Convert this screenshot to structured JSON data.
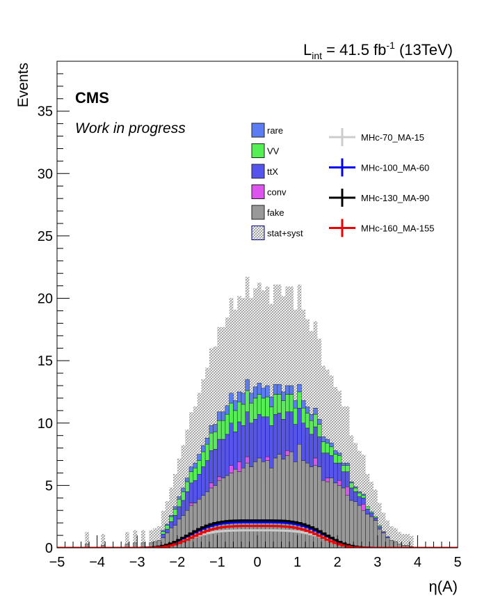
{
  "chart_data": {
    "type": "stacked-histogram",
    "title": "",
    "luminosity_label": {
      "prefix": "L",
      "sub": "int",
      "mid": " = 41.5 fb",
      "sup": "-1",
      "suffix": " (13TeV)"
    },
    "cms_label": "CMS",
    "subtitle": "Work in progress",
    "xlabel": "η(A)",
    "ylabel": "Events",
    "xlim": [
      -5,
      5
    ],
    "ylim": [
      0,
      39
    ],
    "xticks": [
      "−5",
      "−4",
      "−3",
      "−2",
      "−1",
      "0",
      "1",
      "2",
      "3",
      "4",
      "5"
    ],
    "yticks": [
      "0",
      "5",
      "10",
      "15",
      "20",
      "25",
      "30",
      "35"
    ],
    "bin_edges_range": [
      -5,
      5
    ],
    "n_bins": 100,
    "stack_order": [
      "fake",
      "conv",
      "ttX",
      "VV",
      "rare"
    ],
    "legend_backgrounds": [
      {
        "label": "rare",
        "color": "#5b7cf2"
      },
      {
        "label": "VV",
        "color": "#55ee55"
      },
      {
        "label": "ttX",
        "color": "#5555ee"
      },
      {
        "label": "conv",
        "color": "#dd55ee"
      },
      {
        "label": "fake",
        "color": "#999999"
      },
      {
        "label": "stat+syst",
        "color": "hatch"
      }
    ],
    "legend_signals": [
      {
        "label": "MHc-70_MA-15",
        "color": "#cccccc"
      },
      {
        "label": "MHc-100_MA-60",
        "color": "#0000ee"
      },
      {
        "label": "MHc-130_MA-90",
        "color": "#000000"
      },
      {
        "label": "MHc-160_MA-155",
        "color": "#ee0000"
      }
    ],
    "series": [
      {
        "name": "fake",
        "values": [
          0,
          0,
          0,
          0,
          0,
          0,
          0,
          0.3,
          0,
          0,
          0,
          0.2,
          0,
          0,
          0,
          0,
          0,
          0.3,
          0,
          0.4,
          0,
          0.4,
          0,
          0.4,
          0.5,
          0.6,
          0.8,
          1.2,
          1.6,
          1.8,
          2.3,
          2.6,
          3.0,
          3.4,
          3.6,
          3.9,
          4.2,
          4.5,
          4.8,
          5.0,
          5.4,
          5.6,
          5.8,
          6.0,
          6.3,
          6.1,
          6.4,
          6.8,
          6.5,
          6.9,
          7.2,
          6.9,
          7.0,
          6.4,
          7.2,
          7.5,
          7.1,
          7.4,
          7.7,
          6.9,
          8.3,
          7.0,
          6.8,
          6.5,
          6.6,
          6.5,
          5.4,
          5.3,
          5.6,
          5.2,
          5.0,
          4.8,
          4.2,
          3.8,
          3.7,
          3.4,
          3.0,
          2.7,
          2.5,
          2.2,
          1.5,
          1.2,
          0.8,
          0.6,
          0.5,
          0.3,
          0.2,
          0.2,
          0.1,
          0,
          0,
          0,
          0,
          0,
          0,
          0,
          0,
          0,
          0,
          0
        ]
      },
      {
        "name": "conv",
        "values": [
          0,
          0,
          0,
          0,
          0,
          0,
          0,
          0,
          0,
          0,
          0,
          0,
          0,
          0,
          0,
          0,
          0,
          0,
          0,
          0,
          0,
          0,
          0,
          0,
          0,
          0,
          0,
          0,
          0,
          0,
          0,
          0,
          0,
          0.2,
          0,
          0,
          0,
          0,
          0.4,
          0,
          0.3,
          0,
          0,
          0.6,
          0,
          0.8,
          0,
          0.5,
          0,
          0,
          0,
          0,
          0.3,
          0,
          0,
          0,
          0,
          0.4,
          0,
          0,
          0,
          0,
          0,
          0,
          0.6,
          0,
          0,
          0.3,
          0,
          0,
          0.4,
          0,
          0.7,
          0,
          0,
          0,
          0.5,
          0,
          0,
          0,
          0,
          0,
          0,
          0,
          0,
          0,
          0,
          0,
          0,
          0,
          0,
          0,
          0,
          0,
          0,
          0,
          0,
          0,
          0,
          0
        ]
      },
      {
        "name": "ttX",
        "values": [
          0,
          0,
          0,
          0,
          0,
          0,
          0,
          0,
          0,
          0,
          0,
          0,
          0,
          0,
          0,
          0,
          0,
          0,
          0,
          0,
          0,
          0,
          0,
          0,
          0,
          0,
          0.3,
          0.3,
          0.5,
          0.8,
          1.0,
          1.2,
          1.5,
          1.6,
          1.8,
          2.0,
          2.3,
          2.5,
          2.6,
          2.9,
          3.0,
          3.1,
          3.3,
          3.4,
          3.0,
          3.2,
          3.4,
          3.6,
          3.5,
          3.4,
          3.5,
          3.6,
          3.2,
          3.4,
          3.5,
          3.3,
          3.2,
          3.1,
          3.2,
          3.0,
          2.9,
          3.0,
          2.8,
          2.6,
          2.5,
          2.4,
          2.2,
          2.0,
          1.8,
          1.6,
          1.4,
          1.3,
          1.2,
          1.0,
          0.8,
          0.7,
          0.5,
          0.4,
          0.3,
          0.2,
          0.2,
          0.1,
          0.1,
          0,
          0,
          0,
          0,
          0,
          0,
          0,
          0,
          0,
          0,
          0,
          0,
          0,
          0,
          0,
          0,
          0
        ]
      },
      {
        "name": "VV",
        "values": [
          0,
          0,
          0,
          0,
          0,
          0,
          0,
          0,
          0,
          0,
          0,
          0,
          0,
          0,
          0,
          0,
          0,
          0,
          0,
          0,
          0,
          0,
          0,
          0,
          0,
          0,
          0.2,
          0.3,
          0.4,
          0.5,
          0.6,
          0.7,
          0.8,
          0.9,
          1.0,
          1.1,
          1.2,
          1.3,
          1.4,
          1.4,
          1.5,
          1.5,
          1.6,
          1.6,
          1.7,
          1.6,
          1.7,
          1.7,
          1.6,
          1.7,
          1.6,
          1.5,
          1.6,
          1.5,
          1.6,
          1.5,
          1.5,
          1.4,
          1.4,
          1.3,
          1.3,
          1.2,
          1.2,
          1.1,
          1.0,
          1.0,
          0.9,
          0.8,
          0.7,
          0.7,
          0.6,
          0.5,
          0.5,
          0.4,
          0.3,
          0.3,
          0.2,
          0.2,
          0.1,
          0.1,
          0.1,
          0,
          0,
          0,
          0,
          0,
          0,
          0,
          0,
          0,
          0,
          0,
          0,
          0,
          0,
          0,
          0,
          0,
          0,
          0
        ]
      },
      {
        "name": "rare",
        "values": [
          0,
          0,
          0,
          0,
          0,
          0,
          0,
          0,
          0,
          0,
          0,
          0,
          0,
          0,
          0,
          0,
          0,
          0,
          0,
          0,
          0,
          0,
          0,
          0,
          0,
          0,
          0.1,
          0.1,
          0.1,
          0.2,
          0.2,
          0.3,
          0.3,
          0.4,
          0.4,
          0.5,
          0.5,
          0.5,
          0.6,
          0.6,
          0.7,
          0.7,
          0.7,
          0.8,
          0.8,
          0.8,
          0.9,
          0.9,
          0.8,
          0.9,
          0.9,
          0.8,
          0.9,
          0.8,
          0.8,
          0.8,
          0.7,
          0.7,
          0.7,
          0.6,
          0.6,
          0.6,
          0.5,
          0.5,
          0.5,
          0.4,
          0.4,
          0.3,
          0.3,
          0.3,
          0.2,
          0.2,
          0.2,
          0.1,
          0.1,
          0.1,
          0.1,
          0,
          0,
          0,
          0,
          0,
          0,
          0,
          0,
          0,
          0,
          0,
          0,
          0,
          0,
          0,
          0,
          0,
          0,
          0,
          0,
          0,
          0,
          0
        ]
      }
    ],
    "uncertainty_rel": 0.55,
    "signals": [
      {
        "name": "MHc-70_MA-15",
        "peak": 1.4,
        "width": 1.2
      },
      {
        "name": "MHc-100_MA-60",
        "peak": 2.05,
        "width": 1.15
      },
      {
        "name": "MHc-130_MA-90",
        "peak": 2.2,
        "width": 1.15
      },
      {
        "name": "MHc-160_MA-155",
        "peak": 1.75,
        "width": 1.1
      }
    ]
  }
}
